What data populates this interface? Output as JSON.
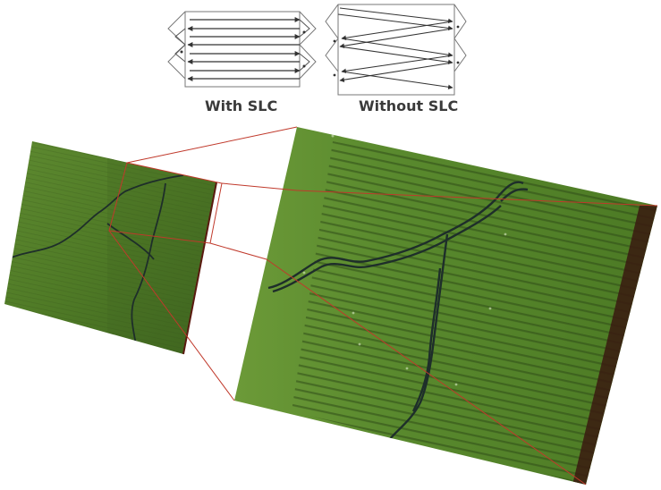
{
  "captions": {
    "with_slc": "With SLC",
    "without_slc": "Without SLC"
  },
  "colors": {
    "scene_green": "#4f7a26",
    "scene_green_light": "#6f9a3a",
    "river_dark": "#1e2e2a",
    "zoom_lines": "#c0392b",
    "edge_dark": "#3a1a10",
    "diagram_stroke": "#555555"
  },
  "icons": {
    "scan_with": "zigzag-scan-corrected-icon",
    "scan_without": "zigzag-scan-uncorrected-icon",
    "arrow": "arrowhead-icon"
  }
}
